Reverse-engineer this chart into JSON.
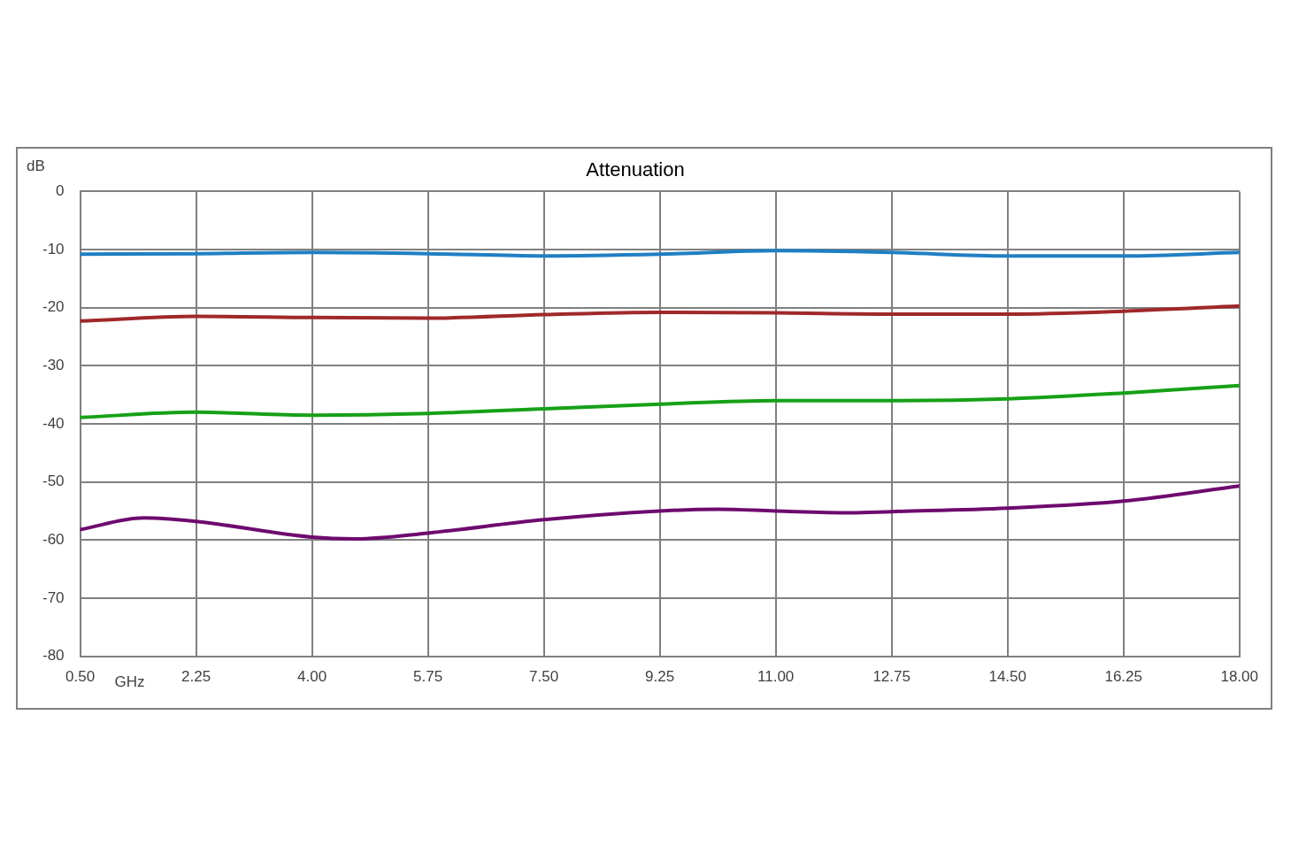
{
  "chart_data": {
    "type": "line",
    "title": "Attenuation",
    "xlabel": "GHz",
    "ylabel": "dB",
    "x": [
      0.5,
      2.25,
      4,
      5.75,
      7.5,
      9.25,
      11,
      12.75,
      14.5,
      16.25,
      18
    ],
    "series": [
      {
        "color": "#1f7fc4",
        "values": [
          -10.8,
          -10.7,
          -10.5,
          -10.7,
          -11.1,
          -10.8,
          -10.2,
          -10.5,
          -11.1,
          -11.1,
          -10.5
        ]
      },
      {
        "color": "#a0282a",
        "values": [
          -22.3,
          -21.5,
          -21.7,
          -21.8,
          -21.2,
          -20.8,
          -20.9,
          -21.1,
          -21.1,
          -20.6,
          -19.7
        ]
      },
      {
        "color": "#16a016",
        "values": [
          -38.9,
          -38.0,
          -38.5,
          -38.2,
          -37.4,
          -36.6,
          -36.0,
          -36.0,
          -35.7,
          -34.7,
          -33.4
        ]
      },
      {
        "color": "#6e0a6e",
        "x": [
          0.5,
          1.46,
          2.25,
          4,
          4.66,
          5.75,
          7.5,
          9.25,
          10.13,
          11,
          12.13,
          12.75,
          14.5,
          16.25,
          18
        ],
        "values": [
          -58.2,
          -56.2,
          -56.8,
          -59.5,
          -59.8,
          -58.8,
          -56.5,
          -55.0,
          -54.7,
          -55.0,
          -55.3,
          -55.1,
          -54.5,
          -53.3,
          -50.7
        ]
      }
    ],
    "xlim": [
      0.5,
      18
    ],
    "xticks": [
      {
        "value": 0.5,
        "label": "0.50"
      },
      {
        "value": 2.25,
        "label": "2.25"
      },
      {
        "value": 4,
        "label": "4.00"
      },
      {
        "value": 5.75,
        "label": "5.75"
      },
      {
        "value": 7.5,
        "label": "7.50"
      },
      {
        "value": 9.25,
        "label": "9.25"
      },
      {
        "value": 11,
        "label": "11.00"
      },
      {
        "value": 12.75,
        "label": "12.75"
      },
      {
        "value": 14.5,
        "label": "14.50"
      },
      {
        "value": 16.25,
        "label": "16.25"
      },
      {
        "value": 18,
        "label": "18.00"
      }
    ],
    "ylim": [
      -80,
      0
    ],
    "yticks": [
      -80,
      -70,
      -60,
      -50,
      -40,
      -30,
      -20,
      -10,
      0
    ],
    "grid": true,
    "legend": false,
    "marker": "none",
    "line_style": "solid"
  }
}
